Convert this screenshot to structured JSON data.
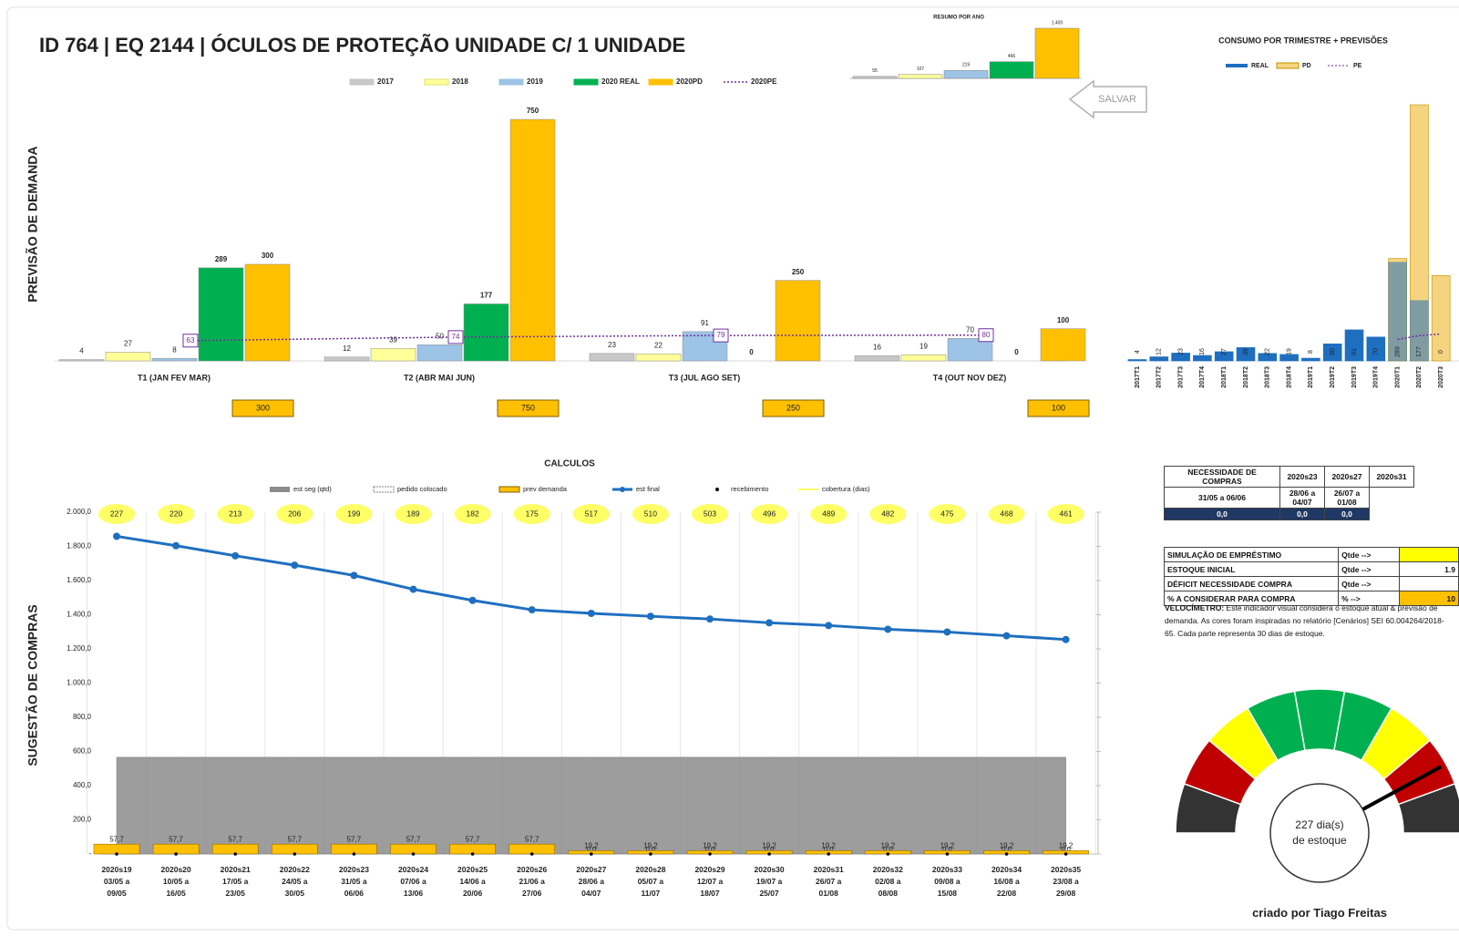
{
  "title": "ID 764 | EQ 2144 | ÓCULOS DE PROTEÇÃO UNIDADE C/ 1 UNIDADE",
  "save_button": "SALVAR",
  "chart_data": [
    {
      "type": "bar",
      "ylabel": "PREVISÃO DE DEMANDA",
      "categories": [
        "T1 (JAN FEV MAR)",
        "T2 (ABR MAI JUN)",
        "T3 (JUL AGO SET)",
        "T4 (OUT NOV DEZ)"
      ],
      "series": [
        {
          "name": "2017",
          "color": "#c8c8c8",
          "values": [
            4,
            12,
            23,
            16
          ]
        },
        {
          "name": "2018",
          "color": "#ffff99",
          "values": [
            27,
            39,
            22,
            19
          ]
        },
        {
          "name": "2019",
          "color": "#9dc3e6",
          "values": [
            8,
            50,
            91,
            70
          ]
        },
        {
          "name": "2020 REAL",
          "color": "#00b050",
          "values": [
            289,
            177,
            0,
            0
          ]
        },
        {
          "name": "2020PD",
          "color": "#ffc000",
          "values": [
            300,
            750,
            250,
            100
          ]
        },
        {
          "name": "2020PE",
          "color": "#7030a0",
          "type": "line",
          "values": [
            63,
            74,
            79,
            80
          ]
        }
      ],
      "totals": [
        300,
        750,
        250,
        100
      ]
    },
    {
      "type": "bar",
      "title": "RESUMO POR ANO",
      "values": [
        55,
        107,
        219,
        466,
        1400
      ],
      "value_labels": [
        "55",
        "107",
        "219",
        "466",
        "1.400"
      ],
      "colors": [
        "#c8c8c8",
        "#ffff99",
        "#9dc3e6",
        "#00b050",
        "#ffc000"
      ]
    },
    {
      "type": "bar",
      "title": "CONSUMO POR TRIMESTRE + PREVISÕES",
      "categories": [
        "2017T1",
        "2017T2",
        "2017T3",
        "2017T4",
        "2018T1",
        "2018T2",
        "2018T3",
        "2018T4",
        "2019T1",
        "2019T2",
        "2019T3",
        "2019T4",
        "2020T1",
        "2020T2",
        "2020T3"
      ],
      "series": [
        {
          "name": "REAL",
          "color": "#1f6fc0",
          "values": [
            4,
            12,
            23,
            16,
            27,
            39,
            22,
            19,
            8,
            50,
            91,
            70,
            289,
            177,
            0
          ]
        },
        {
          "name": "PD",
          "color": "#f5d47f",
          "values": [
            null,
            null,
            null,
            null,
            null,
            null,
            null,
            null,
            null,
            null,
            null,
            null,
            300,
            750,
            250
          ]
        },
        {
          "name": "PE",
          "color": "#7030a0",
          "type": "line",
          "values": [
            null,
            null,
            null,
            null,
            null,
            null,
            null,
            null,
            null,
            null,
            null,
            null,
            63,
            74,
            79
          ]
        }
      ]
    },
    {
      "type": "combo",
      "title": "CALCULOS",
      "ylabel": "SUGESTÃO DE COMPRAS",
      "categories": [
        "2020s19 03/05 a 09/05",
        "2020s20 10/05 a 16/05",
        "2020s21 17/05 a 23/05",
        "2020s22 24/05 a 30/05",
        "2020s23 31/05 a 06/06",
        "2020s24 07/06 a 13/06",
        "2020s25 14/06 a 20/06",
        "2020s26 21/06 a 27/06",
        "2020s27 28/06 a 04/07",
        "2020s28 05/07 a 11/07",
        "2020s29 12/07 a 18/07",
        "2020s30 19/07 a 25/07",
        "2020s31 26/07 a 01/08",
        "2020s32 02/08 a 08/08",
        "2020s33 09/08 a 15/08",
        "2020s34 16/08 a 22/08",
        "2020s35 23/08 a 29/08"
      ],
      "ylim": [
        0,
        2000
      ],
      "yticks": [
        {
          "value": 0,
          "label": "-"
        },
        {
          "value": 200,
          "label": "200,0"
        },
        {
          "value": 400,
          "label": "400,0"
        },
        {
          "value": 600,
          "label": "600,0"
        },
        {
          "value": 800,
          "label": "800,0"
        },
        {
          "value": 1000,
          "label": "1.000,0"
        },
        {
          "value": 1200,
          "label": "1.200,0"
        },
        {
          "value": 1400,
          "label": "1.400,0"
        },
        {
          "value": 1600,
          "label": "1.600,0"
        },
        {
          "value": 1800,
          "label": "1.800,0"
        },
        {
          "value": 2000,
          "label": "2.000,0"
        }
      ],
      "series": [
        {
          "name": "est seg (qtd)",
          "kind": "area",
          "color": "#8c8c8c",
          "values": [
            566,
            566,
            566,
            566,
            566,
            566,
            566,
            566,
            566,
            566,
            566,
            566,
            566,
            566,
            566,
            566,
            566
          ]
        },
        {
          "name": "pedido colocado",
          "kind": "dashed-bar",
          "color": "#7f7f7f",
          "values": [
            0,
            0,
            0,
            0,
            0,
            0,
            0,
            0,
            0,
            0,
            0,
            0,
            0,
            0,
            0,
            0,
            0
          ],
          "value_labels": [
            "0,0",
            "0,0",
            "0,0",
            "0,0",
            "0,0",
            "0,0",
            "0,0",
            "0,0",
            "0,0",
            "0,0",
            "0,0",
            "0,0",
            "0,0",
            "0,0",
            "0,0",
            "0,0",
            "0,0"
          ]
        },
        {
          "name": "prev demanda",
          "kind": "bar",
          "color": "#ffc000",
          "values": [
            57.7,
            57.7,
            57.7,
            57.7,
            57.7,
            57.7,
            57.7,
            57.7,
            19.2,
            19.2,
            19.2,
            19.2,
            19.2,
            19.2,
            19.2,
            19.2,
            19.2
          ],
          "value_labels": [
            "57,7",
            "57,7",
            "57,7",
            "57,7",
            "57,7",
            "57,7",
            "57,7",
            "57,7",
            "19,2",
            "19,2",
            "19,2",
            "19,2",
            "19,2",
            "19,2",
            "19,2",
            "19,2",
            "19,2"
          ]
        },
        {
          "name": "est final",
          "kind": "line",
          "color": "#1f6fc0",
          "values": [
            1859,
            1804,
            1745,
            1690,
            1630,
            1549,
            1484,
            1429,
            1408,
            1391,
            1375,
            1353,
            1337,
            1315,
            1299,
            1277,
            1255
          ]
        },
        {
          "name": "recebimento",
          "kind": "dot",
          "color": "#000000",
          "values": [
            0,
            0,
            0,
            0,
            0,
            0,
            0,
            0,
            0,
            0,
            0,
            0,
            0,
            0,
            0,
            0,
            0
          ]
        },
        {
          "name": "cobertura (dias)",
          "kind": "label",
          "color": "#ffff66",
          "values": [
            227,
            220,
            213,
            206,
            199,
            189,
            182,
            175,
            517,
            510,
            503,
            496,
            489,
            482,
            475,
            468,
            461
          ]
        }
      ]
    }
  ],
  "need_table": {
    "title": "NECESSIDADE DE COMPRAS",
    "columns": [
      {
        "week": "2020s23",
        "range": "31/05 a 06/06",
        "value": "0,0"
      },
      {
        "week": "2020s27",
        "range": "28/06 a 04/07",
        "value": "0,0"
      },
      {
        "week": "2020s31",
        "range": "26/07 a 01/08",
        "value": "0,0"
      }
    ]
  },
  "simulation_table": {
    "rows": [
      [
        "SIMULAÇÃO DE EMPRÉSTIMO",
        "Qtde -->"
      ],
      [
        "ESTOQUE INICIAL",
        "Qtde -->",
        "1.9"
      ],
      [
        "DÉFICIT NECESSIDADE COMPRA",
        "Qtde -->"
      ],
      [
        "% A CONSIDERAR PARA COMPRA",
        "% -->",
        "10"
      ]
    ]
  },
  "gauge": {
    "description_title": "VELOCÍMETRO:",
    "description": "Este indicador visual considera o estoque atual & previsão de demanda. As cores foram inspiradas no relatório [Cenários] SEI 60.004264/2018-65. Cada parte representa 30 dias de estoque.",
    "value": 227,
    "unit": "dia(s) de estoque",
    "range": [
      0,
      270
    ],
    "colors": [
      "#333333",
      "#c00000",
      "#ffff00",
      "#00b050",
      "#00b050",
      "#00b050",
      "#ffff00",
      "#c00000",
      "#333333"
    ]
  },
  "footer": "criado por Tiago Freitas"
}
